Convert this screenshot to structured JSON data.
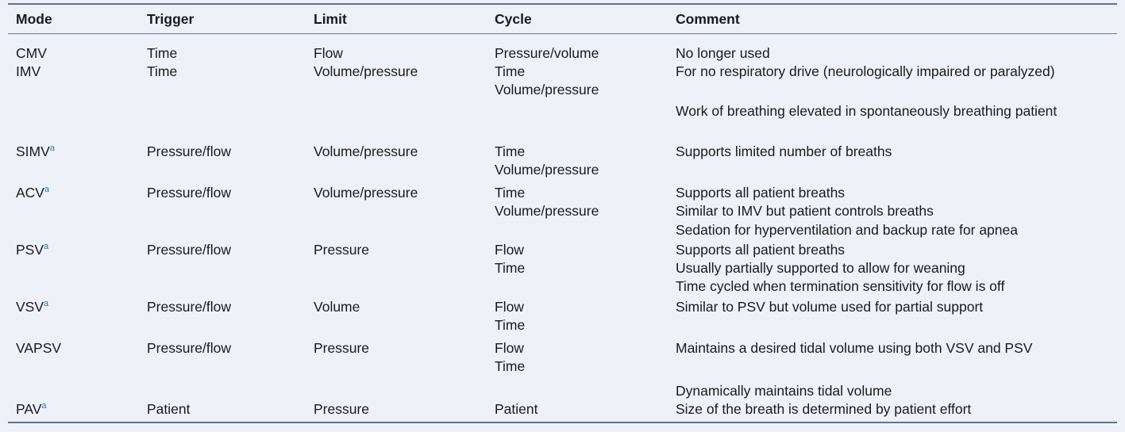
{
  "headers": [
    "Mode",
    "Trigger",
    "Limit",
    "Cycle",
    "Comment"
  ],
  "rows": [
    {
      "mode": "CMV",
      "sup": "",
      "trigger": "Time",
      "limit": "Flow",
      "cycle": "Pressure/volume",
      "comments": [
        "No longer used"
      ]
    },
    {
      "mode": "IMV",
      "sup": "",
      "trigger": "Time",
      "limit": "Volume/pressure",
      "cycle": "Time\nVolume/pressure",
      "comments": [
        "For no respiratory drive (neurologically impaired or paralyzed)",
        "Work of breathing elevated in spontaneously breathing patient"
      ]
    },
    {
      "mode": "SIMV",
      "sup": "a",
      "trigger": "Pressure/flow",
      "limit": "Volume/pressure",
      "cycle": "Time\nVolume/pressure",
      "comments": [
        "Supports limited number of breaths"
      ]
    },
    {
      "mode": "ACV",
      "sup": "a",
      "trigger": "Pressure/flow",
      "limit": "Volume/pressure",
      "cycle": "Time\nVolume/pressure",
      "comments": [
        "Supports all patient breaths",
        "Similar to IMV but patient controls breaths",
        "Sedation for hyperventilation and backup rate for apnea"
      ]
    },
    {
      "mode": "PSV",
      "sup": "a",
      "trigger": "Pressure/flow",
      "limit": "Pressure",
      "cycle": "Flow\nTime",
      "comments": [
        "Supports all patient breaths",
        "Usually partially supported to allow for weaning",
        "Time cycled when termination sensitivity for flow is off"
      ]
    },
    {
      "mode": "VSV",
      "sup": "a",
      "trigger": "Pressure/flow",
      "limit": "Volume",
      "cycle": "Flow\nTime",
      "comments": [
        "Similar to PSV but volume used for partial support"
      ]
    },
    {
      "mode": "VAPSV",
      "sup": "",
      "trigger": "Pressure/flow",
      "limit": "Pressure",
      "cycle": "Flow\nTime",
      "comments": [
        "Maintains a desired tidal volume using both VSV and PSV",
        "Dynamically maintains tidal volume"
      ]
    },
    {
      "mode": "PAV",
      "sup": "a",
      "trigger": "Patient",
      "limit": "Pressure",
      "cycle": "Patient",
      "comments": [
        "Size of the breath is determined by patient effort"
      ]
    }
  ]
}
